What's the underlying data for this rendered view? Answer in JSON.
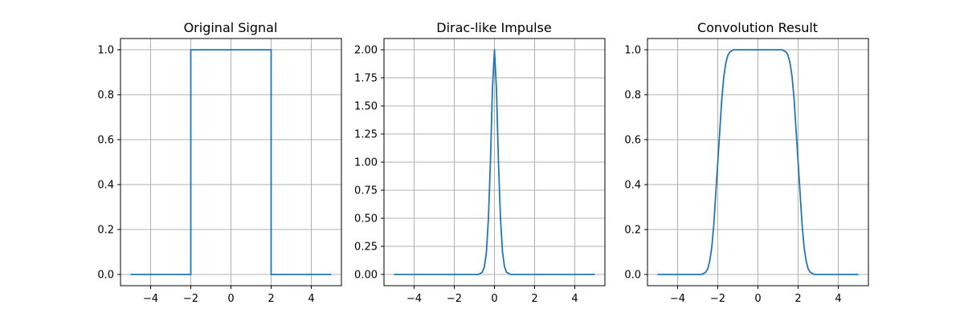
{
  "figure": {
    "background": "#ffffff",
    "line_color": "#1f77b4",
    "grid_color": "#b0b0b0"
  },
  "chart_data": [
    {
      "type": "line",
      "title": "Original Signal",
      "xlabel": "",
      "ylabel": "",
      "grid": true,
      "xlim": [
        -5.5,
        5.5
      ],
      "ylim": [
        -0.05,
        1.05
      ],
      "xticks": [
        -4,
        -2,
        0,
        2,
        4
      ],
      "xtick_labels": [
        "−4",
        "−2",
        "0",
        "2",
        "4"
      ],
      "yticks": [
        0,
        0.2,
        0.4,
        0.6,
        0.8,
        1.0
      ],
      "ytick_labels": [
        "0.0",
        "0.2",
        "0.4",
        "0.6",
        "0.8",
        "1.0"
      ],
      "series": [
        {
          "x": [
            -5,
            -2,
            -2,
            2,
            2,
            5
          ],
          "y": [
            0,
            0,
            1,
            1,
            0,
            0
          ]
        }
      ]
    },
    {
      "type": "line",
      "title": "Dirac-like Impulse",
      "xlabel": "",
      "ylabel": "",
      "grid": true,
      "xlim": [
        -5.5,
        5.5
      ],
      "ylim": [
        -0.1,
        2.1
      ],
      "xticks": [
        -4,
        -2,
        0,
        2,
        4
      ],
      "xtick_labels": [
        "−4",
        "−2",
        "0",
        "2",
        "4"
      ],
      "yticks": [
        0,
        0.25,
        0.5,
        0.75,
        1.0,
        1.25,
        1.5,
        1.75,
        2.0
      ],
      "ytick_labels": [
        "0.00",
        "0.25",
        "0.50",
        "0.75",
        "1.00",
        "1.25",
        "1.50",
        "1.75",
        "2.00"
      ],
      "series": [
        {
          "x": [
            -5,
            -0.8,
            -0.6,
            -0.5,
            -0.4,
            -0.3,
            -0.2,
            -0.1,
            0,
            0.1,
            0.2,
            0.3,
            0.4,
            0.5,
            0.6,
            0.8,
            5
          ],
          "y": [
            0,
            0,
            0.02,
            0.07,
            0.2,
            0.5,
            1.0,
            1.65,
            2.0,
            1.65,
            1.0,
            0.5,
            0.2,
            0.07,
            0.02,
            0,
            0
          ]
        }
      ]
    },
    {
      "type": "line",
      "title": "Convolution Result",
      "xlabel": "",
      "ylabel": "",
      "grid": true,
      "xlim": [
        -5.5,
        5.5
      ],
      "ylim": [
        -0.05,
        1.05
      ],
      "xticks": [
        -4,
        -2,
        0,
        2,
        4
      ],
      "xtick_labels": [
        "−4",
        "−2",
        "0",
        "2",
        "4"
      ],
      "yticks": [
        0,
        0.2,
        0.4,
        0.6,
        0.8,
        1.0
      ],
      "ytick_labels": [
        "0.0",
        "0.2",
        "0.4",
        "0.6",
        "0.8",
        "1.0"
      ],
      "series": [
        {
          "x": [
            -5,
            -2.8,
            -2.6,
            -2.5,
            -2.4,
            -2.3,
            -2.2,
            -2.1,
            -2.0,
            -1.9,
            -1.8,
            -1.7,
            -1.6,
            -1.5,
            -1.4,
            -1.2,
            1.2,
            1.4,
            1.5,
            1.6,
            1.7,
            1.8,
            1.9,
            2.0,
            2.1,
            2.2,
            2.3,
            2.4,
            2.5,
            2.6,
            2.8,
            5
          ],
          "y": [
            0,
            0,
            0.01,
            0.025,
            0.06,
            0.12,
            0.22,
            0.36,
            0.5,
            0.64,
            0.78,
            0.88,
            0.94,
            0.975,
            0.99,
            1.0,
            1.0,
            0.99,
            0.975,
            0.94,
            0.88,
            0.78,
            0.64,
            0.5,
            0.36,
            0.22,
            0.12,
            0.06,
            0.025,
            0.01,
            0,
            0
          ]
        }
      ]
    }
  ]
}
